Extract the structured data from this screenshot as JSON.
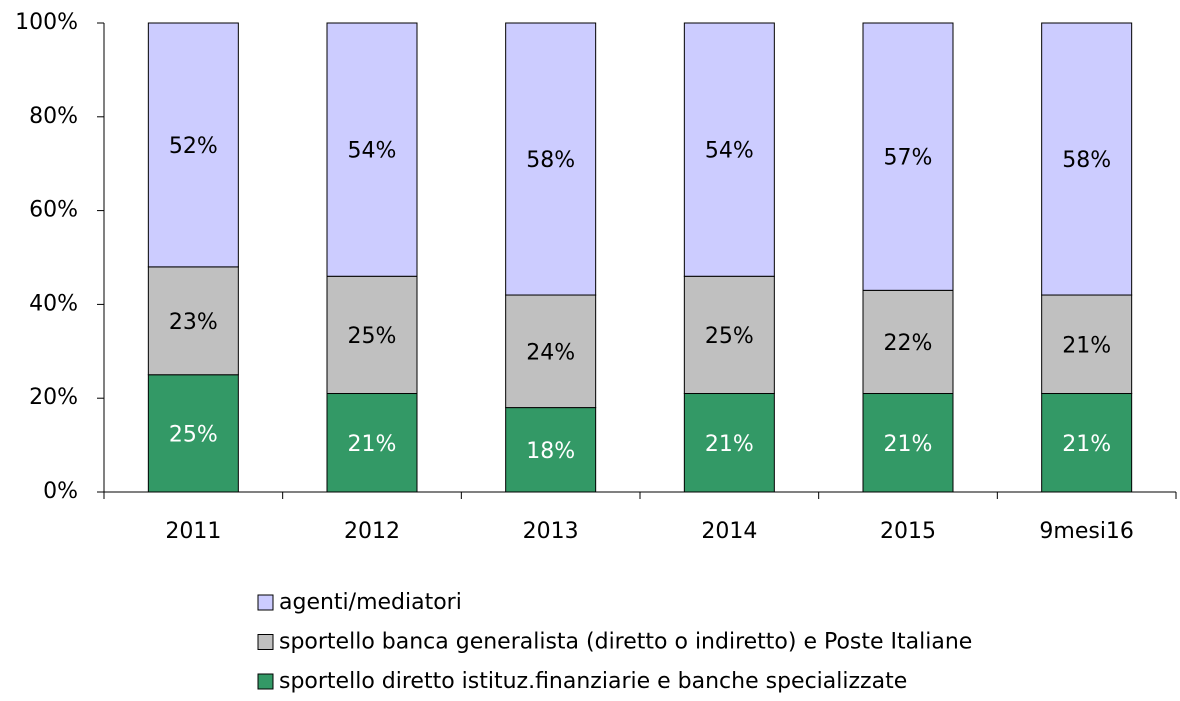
{
  "chart_data": {
    "type": "stacked_bar",
    "categories": [
      "2011",
      "2012",
      "2013",
      "2014",
      "2015",
      "9mesi16"
    ],
    "series": [
      {
        "name": "sportello diretto istituz.finanziarie e banche specializzate",
        "color": "#339966",
        "label_color": "#ffffff",
        "values": [
          25,
          21,
          18,
          21,
          21,
          21
        ],
        "value_labels": [
          "25%",
          "21%",
          "18%",
          "21%",
          "21%",
          "21%"
        ]
      },
      {
        "name": "sportello banca generalista (diretto o indiretto) e Poste Italiane",
        "color": "#c0c0c0",
        "label_color": "#000000",
        "values": [
          23,
          25,
          24,
          25,
          22,
          21
        ],
        "value_labels": [
          "23%",
          "25%",
          "24%",
          "25%",
          "22%",
          "21%"
        ]
      },
      {
        "name": "agenti/mediatori",
        "color": "#ccccff",
        "label_color": "#000000",
        "values": [
          52,
          54,
          58,
          54,
          57,
          58
        ],
        "value_labels": [
          "52%",
          "54%",
          "58%",
          "54%",
          "57%",
          "58%"
        ]
      }
    ],
    "ylim": [
      0,
      100
    ],
    "yticks": [
      {
        "value": 0,
        "label": "0%"
      },
      {
        "value": 20,
        "label": "20%"
      },
      {
        "value": 40,
        "label": "40%"
      },
      {
        "value": 60,
        "label": "60%"
      },
      {
        "value": 80,
        "label": "80%"
      },
      {
        "value": 100,
        "label": "100%"
      }
    ]
  }
}
